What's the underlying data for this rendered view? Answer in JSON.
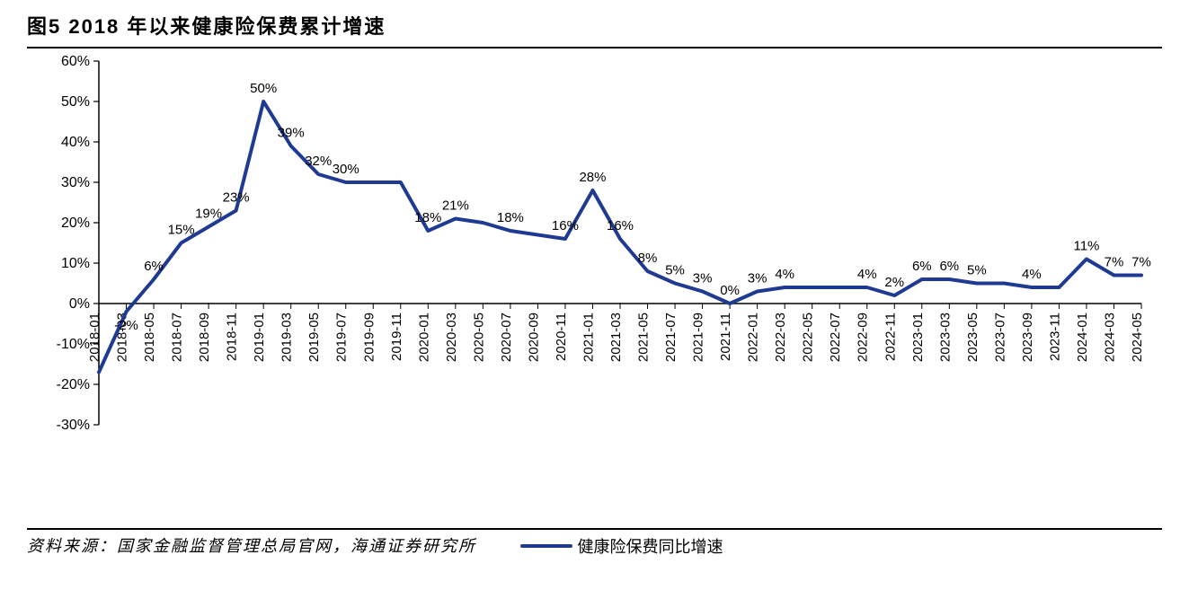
{
  "title": "图5  2018 年以来健康险保费累计增速",
  "source_line": "资料来源：国家金融监督管理总局官网，海通证券研究所",
  "chart": {
    "type": "line",
    "series_name": "健康险保费同比增速",
    "line_color": "#1f3a93",
    "line_width": 4,
    "background_color": "#ffffff",
    "axis_color": "#000000",
    "tick_color": "#000000",
    "label_color": "#000000",
    "title_fontsize": 22,
    "axis_fontsize": 16,
    "data_label_fontsize": 15,
    "y": {
      "min": -30,
      "max": 60,
      "ticks": [
        -30,
        -20,
        -10,
        0,
        10,
        20,
        30,
        40,
        50,
        60
      ],
      "tick_labels": [
        "-30%",
        "-20%",
        "-10%",
        "0%",
        "10%",
        "20%",
        "30%",
        "40%",
        "50%",
        "60%"
      ]
    },
    "x_labels": [
      "2018-01",
      "2018-03",
      "2018-05",
      "2018-07",
      "2018-09",
      "2018-11",
      "2019-01",
      "2019-03",
      "2019-05",
      "2019-07",
      "2019-09",
      "2019-11",
      "2020-01",
      "2020-03",
      "2020-05",
      "2020-07",
      "2020-09",
      "2020-11",
      "2021-01",
      "2021-03",
      "2021-05",
      "2021-07",
      "2021-09",
      "2021-11",
      "2022-01",
      "2022-03",
      "2022-05",
      "2022-07",
      "2022-09",
      "2022-11",
      "2023-01",
      "2023-03",
      "2023-05",
      "2023-07",
      "2023-09",
      "2023-11",
      "2024-01",
      "2024-03",
      "2024-05"
    ],
    "values": [
      -17,
      -2,
      6,
      15,
      19,
      23,
      50,
      39,
      32,
      30,
      30,
      30,
      18,
      21,
      20,
      18,
      17,
      16,
      28,
      16,
      8,
      5,
      3,
      0,
      3,
      4,
      4,
      4,
      4,
      2,
      6,
      6,
      5,
      5,
      4,
      4,
      11,
      7,
      7
    ],
    "data_labels": [
      {
        "i": 0,
        "text": ""
      },
      {
        "i": 1,
        "text": "-2%"
      },
      {
        "i": 2,
        "text": "6%"
      },
      {
        "i": 3,
        "text": "15%"
      },
      {
        "i": 4,
        "text": "19%"
      },
      {
        "i": 5,
        "text": "23%"
      },
      {
        "i": 6,
        "text": "50%"
      },
      {
        "i": 7,
        "text": "39%"
      },
      {
        "i": 8,
        "text": "32%"
      },
      {
        "i": 9,
        "text": "30%"
      },
      {
        "i": 12,
        "text": "18%"
      },
      {
        "i": 13,
        "text": "21%"
      },
      {
        "i": 15,
        "text": "18%"
      },
      {
        "i": 17,
        "text": "16%"
      },
      {
        "i": 18,
        "text": "28%"
      },
      {
        "i": 19,
        "text": "16%"
      },
      {
        "i": 20,
        "text": "8%"
      },
      {
        "i": 21,
        "text": "5%"
      },
      {
        "i": 22,
        "text": "3%"
      },
      {
        "i": 23,
        "text": "0%"
      },
      {
        "i": 24,
        "text": "3%"
      },
      {
        "i": 25,
        "text": "4%"
      },
      {
        "i": 28,
        "text": "4%"
      },
      {
        "i": 29,
        "text": "2%"
      },
      {
        "i": 30,
        "text": "6%"
      },
      {
        "i": 31,
        "text": "6%"
      },
      {
        "i": 32,
        "text": "5%"
      },
      {
        "i": 34,
        "text": "4%"
      },
      {
        "i": 36,
        "text": "11%"
      },
      {
        "i": 37,
        "text": "7%"
      },
      {
        "i": 38,
        "text": "7%"
      }
    ]
  }
}
